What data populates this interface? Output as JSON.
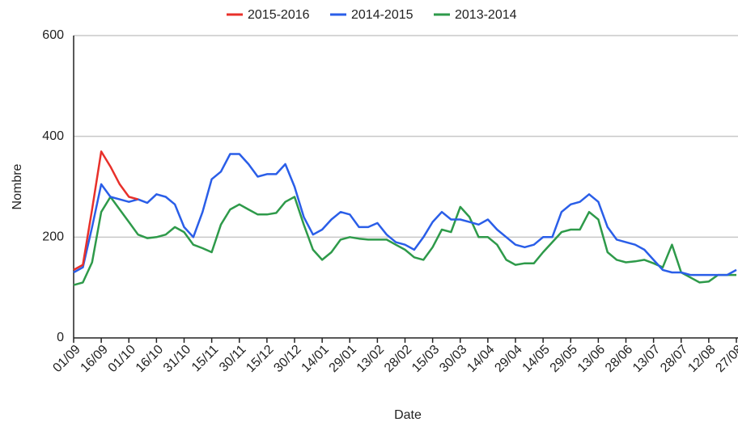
{
  "chart_data": {
    "type": "line",
    "x_label": "Date",
    "y_label": "Nombre",
    "categories": [
      "01/09",
      null,
      null,
      "16/09",
      null,
      null,
      "01/10",
      null,
      null,
      "16/10",
      null,
      null,
      "31/10",
      null,
      null,
      "15/11",
      null,
      null,
      "30/11",
      null,
      null,
      "15/12",
      null,
      null,
      "30/12",
      null,
      null,
      "14/01",
      null,
      null,
      "29/01",
      null,
      null,
      "13/02",
      null,
      null,
      "28/02",
      null,
      null,
      "15/03",
      null,
      null,
      "30/03",
      null,
      null,
      "14/04",
      null,
      null,
      "29/04",
      null,
      null,
      "14/05",
      null,
      null,
      "29/05",
      null,
      null,
      "13/06",
      null,
      null,
      "28/06",
      null,
      null,
      "13/07",
      null,
      null,
      "28/07",
      null,
      null,
      "12/08",
      null,
      null,
      "27/08"
    ],
    "series": [
      {
        "name": "2015-2016",
        "color": "#e8302a",
        "values": [
          135,
          145,
          255,
          370,
          340,
          305,
          280,
          275,
          null,
          null,
          null,
          null,
          null,
          null,
          null,
          null,
          null,
          null,
          null,
          null,
          null,
          null,
          null,
          null,
          null,
          null,
          null,
          null,
          null,
          null,
          null,
          null,
          null,
          null,
          null,
          null,
          null,
          null,
          null,
          null,
          null,
          null,
          null,
          null,
          null,
          null,
          null,
          null,
          null,
          null,
          null,
          null,
          null,
          null,
          null,
          null,
          null,
          null,
          null,
          null,
          null,
          null,
          null,
          null,
          null,
          null,
          null,
          null,
          null,
          null,
          null,
          null,
          null
        ]
      },
      {
        "name": "2014-2015",
        "color": "#2a5ee8",
        "values": [
          130,
          140,
          220,
          305,
          280,
          275,
          270,
          275,
          268,
          285,
          280,
          265,
          220,
          200,
          250,
          315,
          330,
          365,
          365,
          345,
          320,
          325,
          325,
          345,
          300,
          240,
          205,
          215,
          235,
          250,
          245,
          220,
          220,
          228,
          205,
          190,
          185,
          175,
          200,
          230,
          250,
          235,
          235,
          230,
          225,
          235,
          215,
          200,
          185,
          180,
          185,
          200,
          200,
          250,
          265,
          270,
          285,
          270,
          220,
          195,
          190,
          185,
          175,
          155,
          135,
          130,
          130,
          125,
          125,
          125,
          125,
          125,
          135
        ]
      },
      {
        "name": "2013-2014",
        "color": "#2e9a4a",
        "values": [
          105,
          110,
          150,
          250,
          280,
          255,
          230,
          205,
          198,
          200,
          205,
          220,
          210,
          185,
          178,
          170,
          225,
          255,
          265,
          255,
          245,
          245,
          248,
          270,
          280,
          225,
          175,
          155,
          170,
          195,
          200,
          197,
          195,
          195,
          195,
          185,
          175,
          160,
          155,
          180,
          215,
          210,
          260,
          240,
          200,
          200,
          185,
          155,
          145,
          148,
          148,
          170,
          190,
          210,
          215,
          215,
          250,
          235,
          170,
          155,
          150,
          152,
          155,
          148,
          140,
          185,
          130,
          120,
          110,
          112,
          125,
          125,
          125
        ]
      }
    ],
    "ylim": [
      0,
      600
    ],
    "yticks": [
      0,
      200,
      400,
      600
    ],
    "grid": true,
    "legend": "top"
  }
}
